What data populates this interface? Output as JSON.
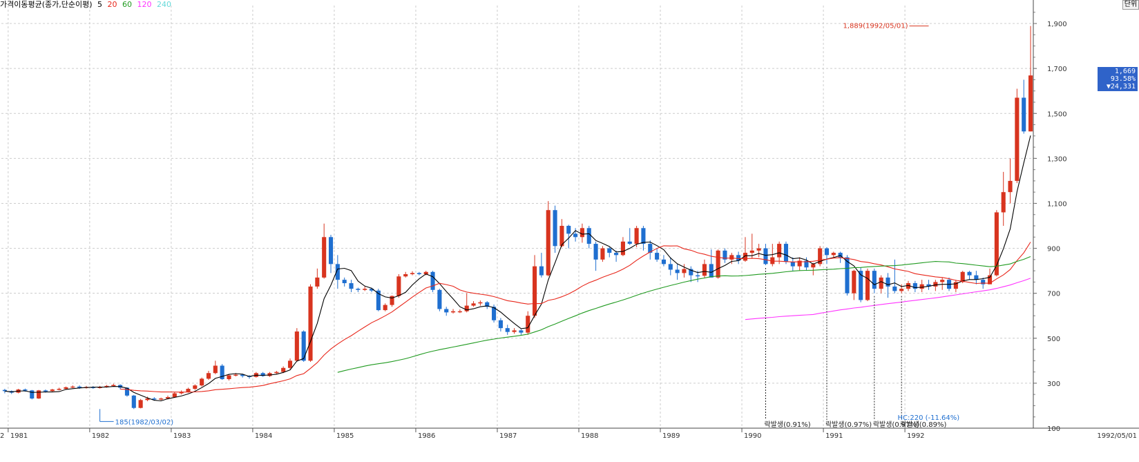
{
  "legend": {
    "title": "가격이동평균(종가,단순이평)",
    "periods": [
      {
        "label": "5",
        "color": "#000000"
      },
      {
        "label": "20",
        "color": "#e8261a"
      },
      {
        "label": "60",
        "color": "#1f9a1f"
      },
      {
        "label": "120",
        "color": "#ff33ff"
      },
      {
        "label": "240",
        "color": "#66d9d9"
      }
    ]
  },
  "unit_button": "단위",
  "price_tag": {
    "price": "1,669",
    "change_pct": "93.58%",
    "change": "▼24,331"
  },
  "colors": {
    "up": "#d8341f",
    "down": "#1f6fd0",
    "ma5": "#000000",
    "ma20": "#e8261a",
    "ma60": "#1f9a1f",
    "ma120": "#ff33ff",
    "grid": "#cccccc"
  },
  "chart_data": {
    "type": "candlestick",
    "frequency": "monthly",
    "y_ticks": [
      100,
      300,
      500,
      700,
      900,
      1100,
      1300,
      1500,
      1700,
      1900
    ],
    "y_tick_labels": [
      "100",
      "300",
      "500",
      "700",
      "900",
      "1,100",
      "1,300",
      "1,500",
      "1,700",
      "1,900"
    ],
    "ylim": [
      100,
      1980
    ],
    "x_year_labels": [
      "1981",
      "1982",
      "1983",
      "1984",
      "1985",
      "1986",
      "1987",
      "1988",
      "1989",
      "1990",
      "1991",
      "1992"
    ],
    "x_edge_label_left": "2",
    "x_edge_label_right": "1992/05/01",
    "year_start_index": [
      1,
      13,
      25,
      37,
      49,
      61,
      73,
      85,
      97,
      109,
      121,
      133
    ],
    "candles": [
      [
        270,
        265,
        275,
        255
      ],
      [
        265,
        258,
        268,
        252
      ],
      [
        258,
        272,
        275,
        255
      ],
      [
        272,
        268,
        276,
        262
      ],
      [
        268,
        232,
        270,
        228
      ],
      [
        232,
        268,
        270,
        230
      ],
      [
        268,
        265,
        272,
        258
      ],
      [
        265,
        272,
        275,
        262
      ],
      [
        272,
        275,
        280,
        268
      ],
      [
        275,
        282,
        285,
        272
      ],
      [
        282,
        285,
        290,
        278
      ],
      [
        285,
        280,
        290,
        275
      ],
      [
        280,
        283,
        288,
        276
      ],
      [
        283,
        281,
        287,
        275
      ],
      [
        281,
        283,
        288,
        276
      ],
      [
        283,
        288,
        292,
        280
      ],
      [
        288,
        292,
        298,
        284
      ],
      [
        292,
        280,
        295,
        272
      ],
      [
        280,
        245,
        282,
        240
      ],
      [
        245,
        190,
        248,
        185
      ],
      [
        190,
        225,
        230,
        188
      ],
      [
        225,
        232,
        240,
        220
      ],
      [
        232,
        228,
        238,
        222
      ],
      [
        228,
        232,
        236,
        224
      ],
      [
        232,
        238,
        245,
        228
      ],
      [
        238,
        255,
        260,
        235
      ],
      [
        255,
        262,
        268,
        250
      ],
      [
        262,
        275,
        280,
        258
      ],
      [
        275,
        290,
        295,
        270
      ],
      [
        290,
        320,
        325,
        285
      ],
      [
        320,
        345,
        355,
        315
      ],
      [
        345,
        378,
        400,
        340
      ],
      [
        378,
        318,
        385,
        315
      ],
      [
        318,
        335,
        340,
        312
      ],
      [
        335,
        338,
        345,
        330
      ],
      [
        338,
        332,
        342,
        325
      ],
      [
        332,
        328,
        336,
        320
      ],
      [
        328,
        345,
        350,
        325
      ],
      [
        345,
        332,
        350,
        328
      ],
      [
        332,
        345,
        350,
        328
      ],
      [
        345,
        350,
        355,
        340
      ],
      [
        350,
        368,
        375,
        345
      ],
      [
        368,
        400,
        410,
        362
      ],
      [
        400,
        530,
        545,
        395
      ],
      [
        530,
        400,
        535,
        395
      ],
      [
        400,
        730,
        740,
        395
      ],
      [
        730,
        770,
        810,
        720
      ],
      [
        770,
        950,
        1010,
        765
      ],
      [
        950,
        830,
        960,
        790
      ],
      [
        830,
        760,
        870,
        720
      ],
      [
        760,
        745,
        770,
        730
      ],
      [
        745,
        720,
        760,
        705
      ],
      [
        720,
        715,
        725,
        705
      ],
      [
        715,
        720,
        730,
        710
      ],
      [
        720,
        712,
        725,
        705
      ],
      [
        712,
        625,
        720,
        620
      ],
      [
        625,
        648,
        655,
        620
      ],
      [
        648,
        688,
        690,
        640
      ],
      [
        688,
        775,
        785,
        680
      ],
      [
        775,
        785,
        795,
        770
      ],
      [
        785,
        790,
        798,
        780
      ],
      [
        790,
        785,
        795,
        780
      ],
      [
        785,
        795,
        800,
        780
      ],
      [
        795,
        715,
        800,
        705
      ],
      [
        715,
        630,
        720,
        620
      ],
      [
        630,
        615,
        640,
        600
      ],
      [
        615,
        620,
        630,
        610
      ],
      [
        620,
        620,
        628,
        612
      ],
      [
        620,
        645,
        700,
        615
      ],
      [
        645,
        655,
        665,
        640
      ],
      [
        655,
        660,
        668,
        645
      ],
      [
        660,
        640,
        665,
        630
      ],
      [
        640,
        580,
        650,
        570
      ],
      [
        580,
        545,
        590,
        530
      ],
      [
        545,
        528,
        560,
        515
      ],
      [
        528,
        535,
        545,
        520
      ],
      [
        535,
        525,
        540,
        515
      ],
      [
        525,
        600,
        620,
        515
      ],
      [
        600,
        820,
        870,
        590
      ],
      [
        820,
        780,
        880,
        770
      ],
      [
        780,
        1070,
        1110,
        775
      ],
      [
        1070,
        910,
        1090,
        880
      ],
      [
        910,
        1000,
        1030,
        905
      ],
      [
        1000,
        965,
        1005,
        900
      ],
      [
        965,
        950,
        990,
        930
      ],
      [
        950,
        990,
        1010,
        925
      ],
      [
        990,
        920,
        1000,
        900
      ],
      [
        920,
        850,
        930,
        800
      ],
      [
        850,
        900,
        910,
        840
      ],
      [
        900,
        880,
        905,
        860
      ],
      [
        880,
        870,
        890,
        840
      ],
      [
        870,
        930,
        950,
        865
      ],
      [
        930,
        920,
        990,
        915
      ],
      [
        920,
        990,
        1000,
        905
      ],
      [
        990,
        920,
        1000,
        890
      ],
      [
        920,
        880,
        935,
        850
      ],
      [
        880,
        850,
        900,
        840
      ],
      [
        850,
        830,
        870,
        820
      ],
      [
        830,
        805,
        860,
        780
      ],
      [
        805,
        790,
        830,
        760
      ],
      [
        790,
        808,
        830,
        770
      ],
      [
        808,
        780,
        820,
        750
      ],
      [
        780,
        778,
        800,
        750
      ],
      [
        778,
        830,
        850,
        770
      ],
      [
        830,
        770,
        895,
        770
      ],
      [
        770,
        890,
        895,
        765
      ],
      [
        890,
        850,
        900,
        835
      ],
      [
        850,
        870,
        880,
        830
      ],
      [
        870,
        845,
        885,
        830
      ],
      [
        845,
        880,
        950,
        840
      ],
      [
        880,
        890,
        965,
        855
      ],
      [
        890,
        900,
        920,
        860
      ],
      [
        900,
        830,
        920,
        825
      ],
      [
        830,
        860,
        920,
        820
      ],
      [
        860,
        920,
        930,
        830
      ],
      [
        920,
        840,
        930,
        830
      ],
      [
        840,
        820,
        860,
        800
      ],
      [
        820,
        845,
        860,
        800
      ],
      [
        845,
        815,
        860,
        800
      ],
      [
        815,
        830,
        835,
        780
      ],
      [
        830,
        900,
        910,
        820
      ],
      [
        900,
        870,
        905,
        830
      ],
      [
        870,
        880,
        885,
        855
      ],
      [
        880,
        860,
        885,
        835
      ],
      [
        860,
        700,
        870,
        690
      ],
      [
        700,
        800,
        805,
        670
      ],
      [
        800,
        670,
        815,
        660
      ],
      [
        670,
        800,
        810,
        665
      ],
      [
        800,
        720,
        810,
        700
      ],
      [
        720,
        770,
        780,
        700
      ],
      [
        770,
        730,
        790,
        680
      ],
      [
        730,
        710,
        850,
        700
      ],
      [
        710,
        720,
        740,
        700
      ],
      [
        720,
        745,
        755,
        710
      ],
      [
        745,
        720,
        755,
        705
      ],
      [
        720,
        740,
        760,
        705
      ],
      [
        740,
        730,
        760,
        715
      ],
      [
        730,
        750,
        760,
        710
      ],
      [
        750,
        760,
        770,
        715
      ],
      [
        760,
        720,
        770,
        710
      ],
      [
        720,
        750,
        760,
        705
      ],
      [
        750,
        795,
        800,
        745
      ],
      [
        795,
        780,
        800,
        760
      ],
      [
        780,
        760,
        800,
        740
      ],
      [
        760,
        740,
        770,
        720
      ],
      [
        740,
        780,
        810,
        740
      ],
      [
        780,
        1060,
        1070,
        775
      ],
      [
        1060,
        1150,
        1240,
        1000
      ],
      [
        1150,
        1200,
        1300,
        1100
      ],
      [
        1200,
        1570,
        1610,
        1190
      ],
      [
        1570,
        1420,
        1650,
        1410
      ],
      [
        1420,
        1669,
        1889,
        1420
      ]
    ],
    "ma20_start": 17,
    "ma60_start": 49,
    "ma120_start": 109,
    "annotations": [
      {
        "text": "1,889(1992/05/01)",
        "type": "high",
        "value": 1889,
        "index": 136
      },
      {
        "text": "185(1982/03/02)",
        "type": "low",
        "value": 185,
        "index": 14
      },
      {
        "text": "락발생(0.91%)",
        "type": "event",
        "index": 112
      },
      {
        "text": "락발생(0.97%)",
        "type": "event",
        "index": 121
      },
      {
        "text": "락발생(0.97%)",
        "type": "event",
        "index": 128
      },
      {
        "text": "락발생(0.89%)",
        "type": "event",
        "index": 132
      },
      {
        "text": "HC:220 (-11.64%)",
        "type": "note",
        "index": 130
      }
    ]
  }
}
